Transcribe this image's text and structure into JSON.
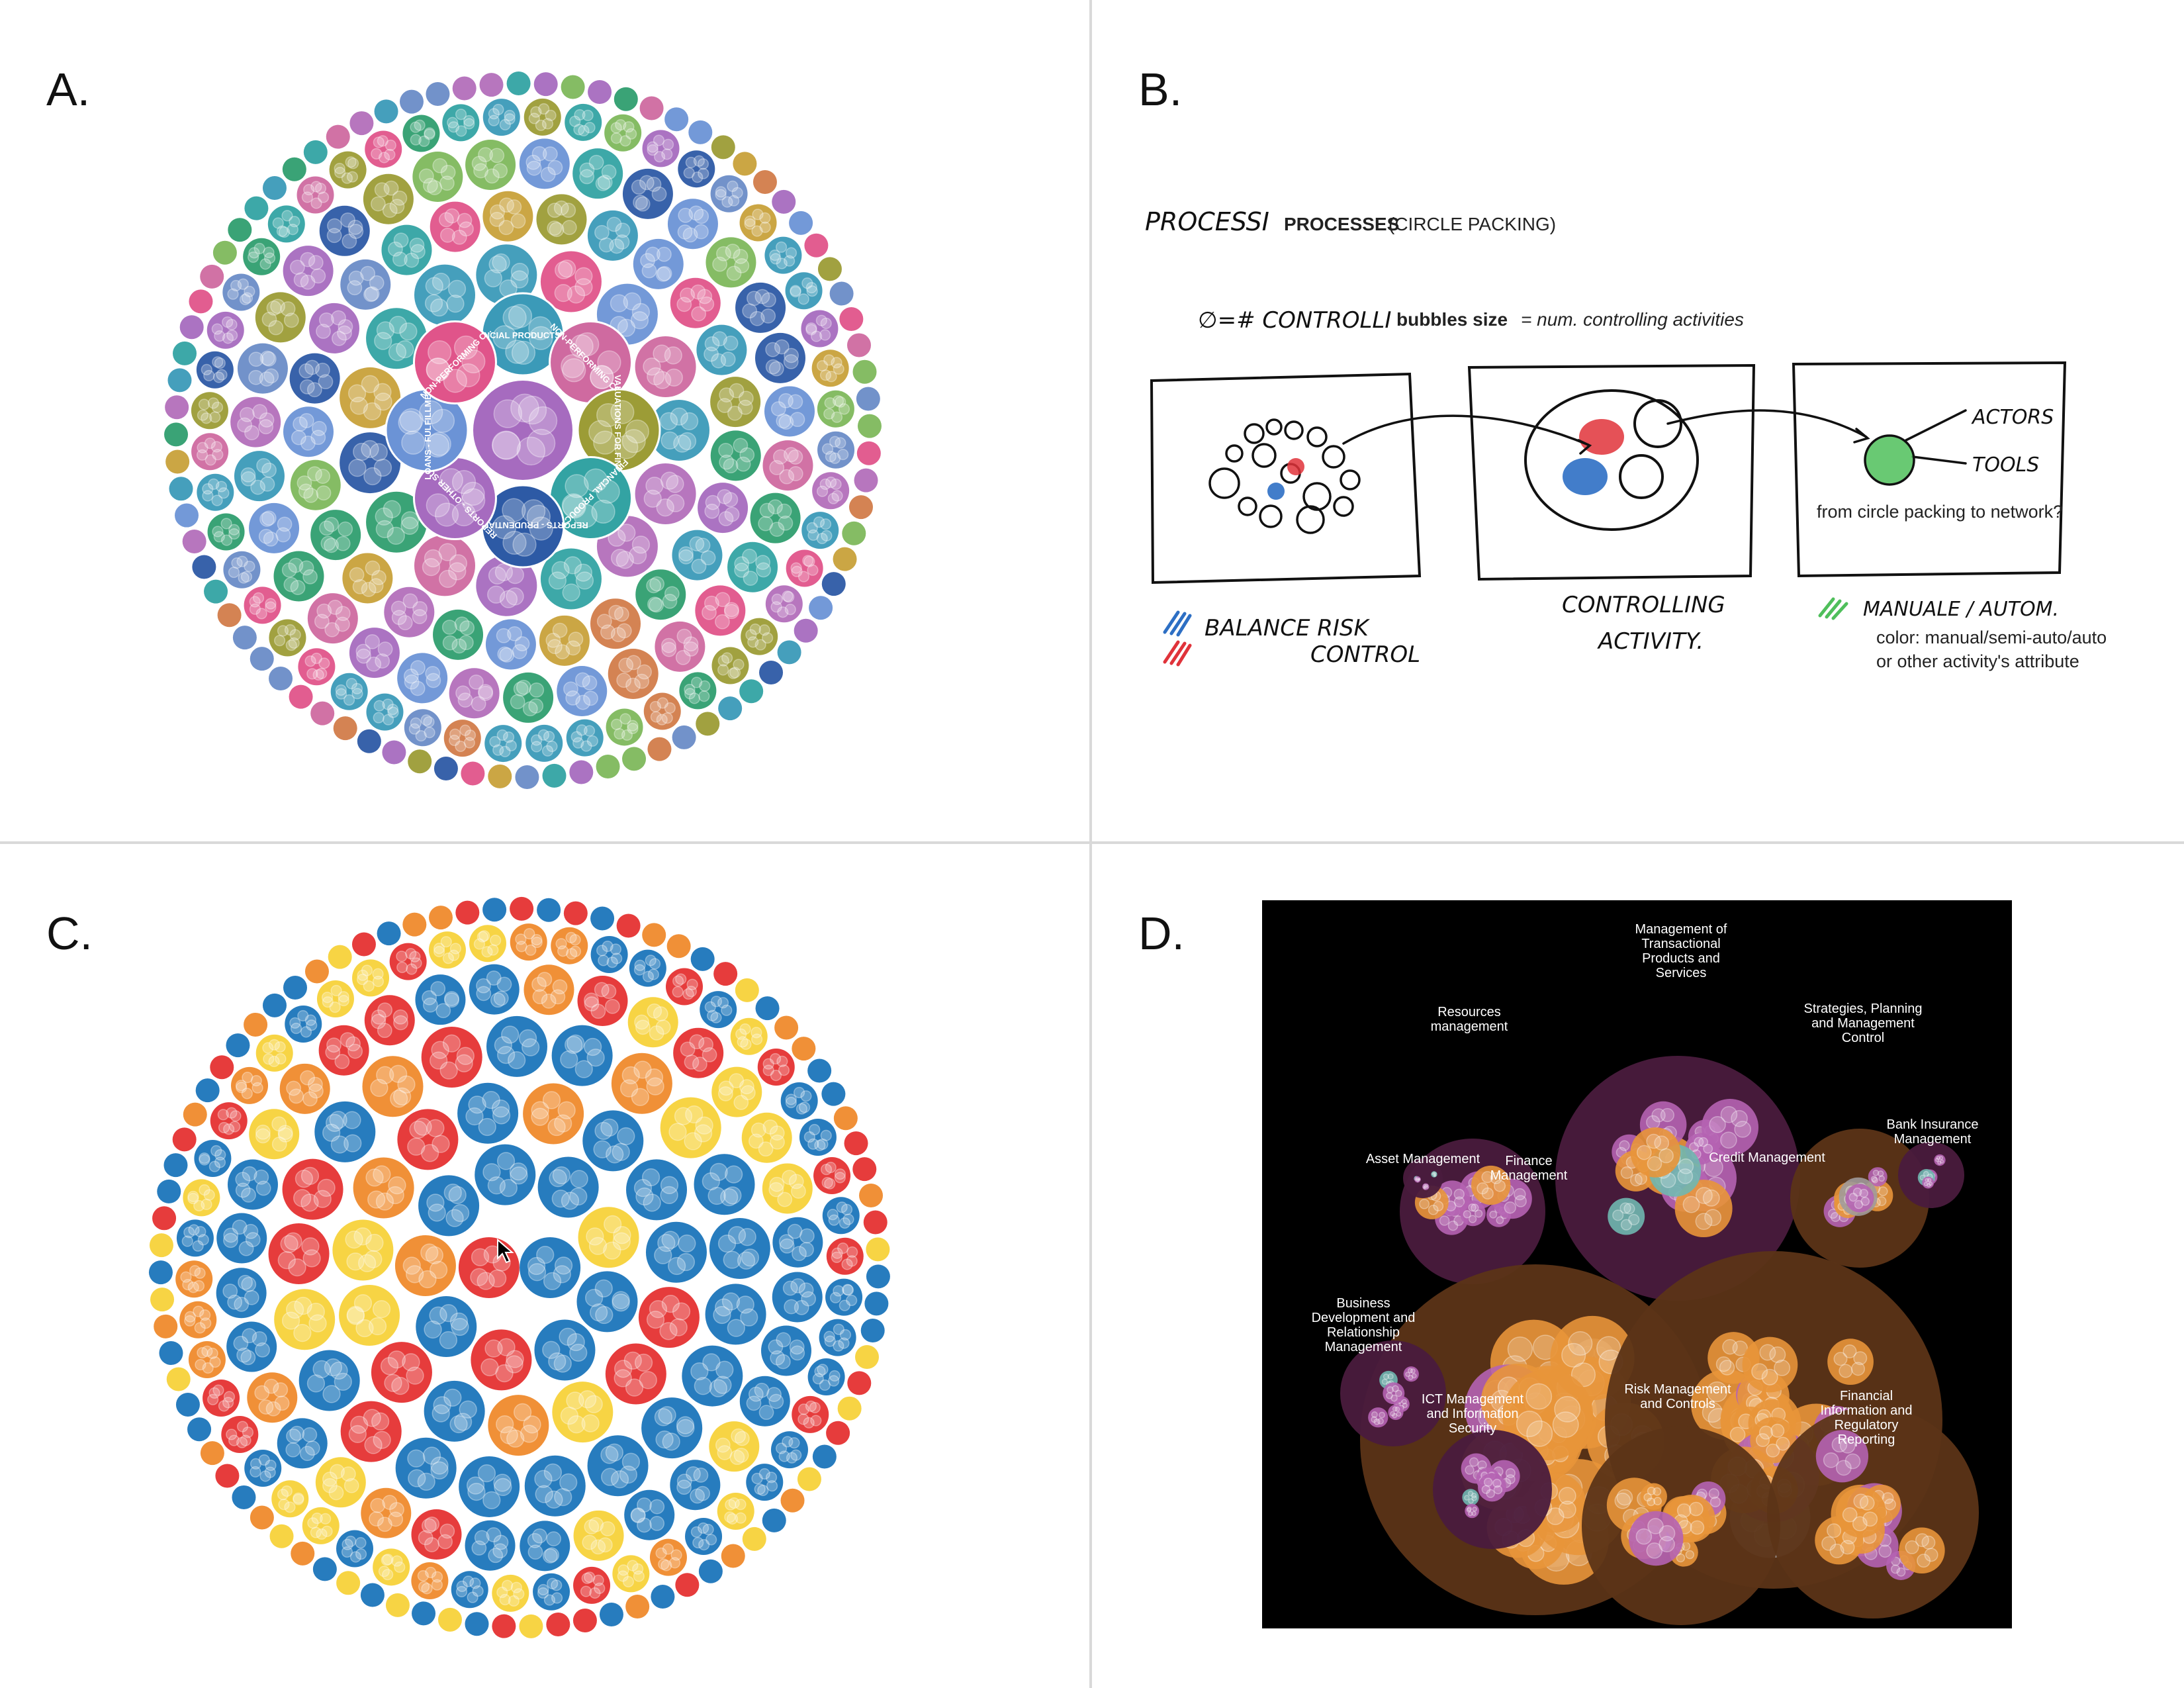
{
  "panels": {
    "a": {
      "label": "A.",
      "colors": [
        "#3b9ab8",
        "#a66bbf",
        "#2f9e6f",
        "#cf6aa0",
        "#6b93d6",
        "#d27c4a",
        "#9c9c36",
        "#e0548a",
        "#6a8cc7",
        "#33a3a3",
        "#b36fba",
        "#7eb85c",
        "#2d5aa5",
        "#c8a13a"
      ],
      "center_labels": [
        "FINANCIAL PRODUCTS AN...",
        "NON-PERFORMING CRE...",
        "VALUATIONS FOR FINAN...",
        "FINANCIAL PRODUCTS...",
        "REPORTS - PRUDENTIAL REP...",
        "REPORTS - OTHER SUPE...",
        "LOANS - FULFILLMEN...",
        "NON-PERFORMING C...",
        "EVALUATIONS FOR FINA...",
        "FINANCIAL PRODUCTS..."
      ]
    },
    "b": {
      "label": "B.",
      "title_hand": "PROCESSI",
      "title_bold": "PROCESSES",
      "title_rest": "(CIRCLE PACKING)",
      "size_hand": "∅=# CONTROLLI",
      "size_bold": "bubbles size",
      "size_rest": "= num. controlling activities",
      "actors": "ACTORS",
      "tools": "TOOLS",
      "network_question": "from circle packing to network?",
      "legend1_line1": "BALANCE RISK",
      "legend1_line2": "CONTROL",
      "legend2_line1": "CONTROLLING",
      "legend2_line2": "ACTIVITY.",
      "legend3": "MANUALE / AUTOM.",
      "color_note1": "color: manual/semi-auto/auto",
      "color_note2": "or other activity's attribute",
      "ink": {
        "blue": "#2d6fc4",
        "red": "#e0333a",
        "green": "#4fbf5b"
      }
    },
    "c": {
      "label": "C.",
      "colors": [
        "#1b75bb",
        "#f7d23a",
        "#ef8a2c",
        "#e53131"
      ]
    },
    "d": {
      "label": "D.",
      "background": "#000000",
      "groups": [
        {
          "name": "Management of Transactional Products and Services",
          "lines": [
            "Management of",
            "Transactional",
            "Products and",
            "Services"
          ],
          "color": "#4a1b3d"
        },
        {
          "name": "Resources management",
          "lines": [
            "Resources",
            "management"
          ],
          "color": "#4a1b3d"
        },
        {
          "name": "Strategies, Planning and Management Control",
          "lines": [
            "Strategies, Planning",
            "and Management",
            "Control"
          ],
          "color": "#5c3417"
        },
        {
          "name": "Bank Insurance Management",
          "lines": [
            "Bank Insurance",
            "Management"
          ],
          "color": "#4a1b3d"
        },
        {
          "name": "Asset Management",
          "lines": [
            "Asset Management"
          ],
          "color": "#4a1b3d"
        },
        {
          "name": "Finance Management",
          "lines": [
            "Finance",
            "Management"
          ],
          "color": "#5c3417"
        },
        {
          "name": "Credit Management",
          "lines": [
            "Credit Management"
          ],
          "color": "#5c3417"
        },
        {
          "name": "Business Development and Relationship Management",
          "lines": [
            "Business",
            "Development and",
            "Relationship",
            "Management"
          ],
          "color": "#4a1b3d"
        },
        {
          "name": "ICT Management and Information Security",
          "lines": [
            "ICT Management",
            "and Information",
            "Security"
          ],
          "color": "#4a1b3d"
        },
        {
          "name": "Risk Management and Controls",
          "lines": [
            "Risk Management",
            "and Controls"
          ],
          "color": "#5c3417"
        },
        {
          "name": "Financial Information and Regulatory Reporting",
          "lines": [
            "Financial",
            "Information and",
            "Regulatory",
            "Reporting"
          ],
          "color": "#5c3417"
        }
      ],
      "leaf_colors": {
        "orange": "#e8953a",
        "pink": "#b563b3",
        "teal": "#6fb7b0",
        "grey": "#a09a9a"
      }
    }
  }
}
